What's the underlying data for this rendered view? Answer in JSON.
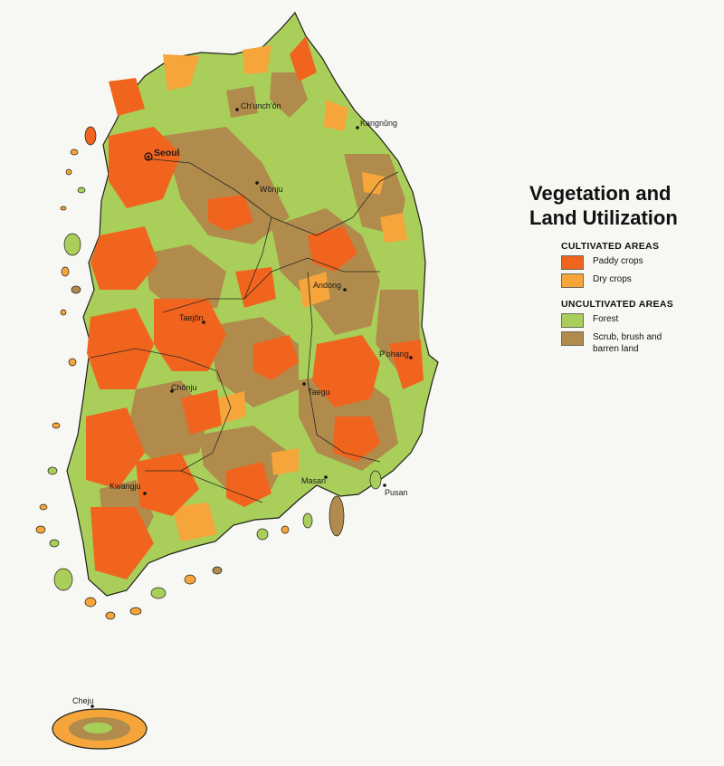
{
  "title_line1": "Vegetation and",
  "title_line2": "Land Utilization",
  "legend": {
    "cultivated_heading": "CULTIVATED AREAS",
    "paddy_label": "Paddy crops",
    "dry_label": "Dry crops",
    "uncultivated_heading": "UNCULTIVATED AREAS",
    "forest_label": "Forest",
    "scrub_label": "Scrub, brush and barren land"
  },
  "colors": {
    "paddy": "#f0641e",
    "dry": "#f6a53a",
    "forest": "#a9cf5a",
    "scrub": "#b08b4c",
    "background": "#f7f7f4"
  },
  "cities": {
    "seoul": "Seoul",
    "chunchon": "Ch'unch'ŏn",
    "kangnung": "Kangnŭng",
    "wonju": "Wŏnju",
    "andong": "Andong",
    "taejon": "Taejŏn",
    "pohang": "P'ohang",
    "chonju": "Chŏnju",
    "taegu": "Taegu",
    "kwangju": "Kwangju",
    "masan": "Masan",
    "pusan": "Pusan",
    "cheju": "Cheju"
  }
}
